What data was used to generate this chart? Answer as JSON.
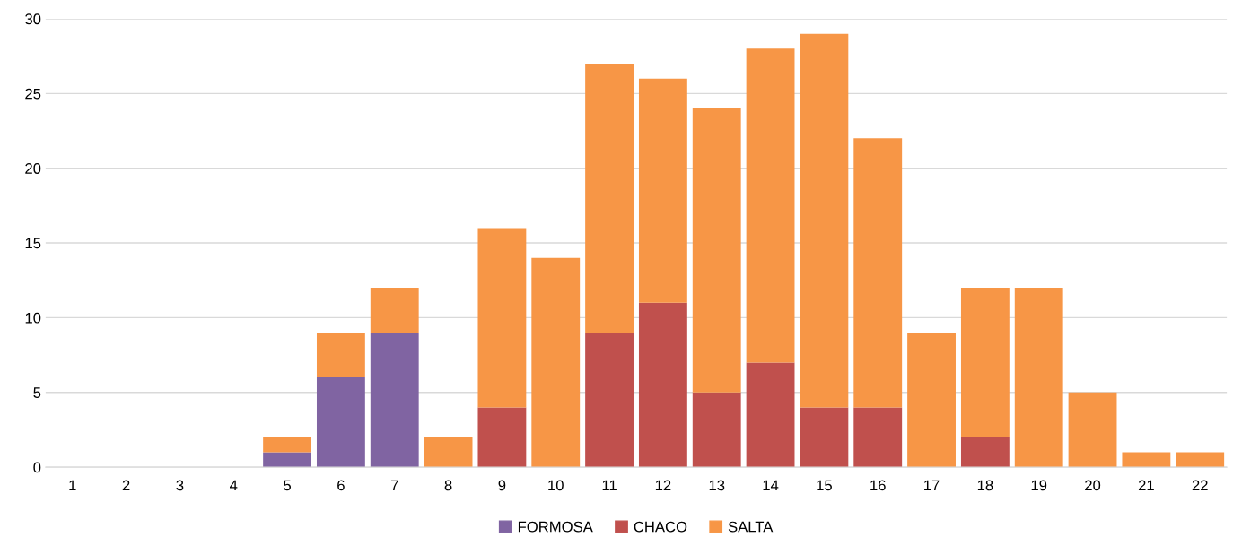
{
  "chart_data": {
    "type": "bar",
    "stacked": true,
    "categories": [
      "1",
      "2",
      "3",
      "4",
      "5",
      "6",
      "7",
      "8",
      "9",
      "10",
      "11",
      "12",
      "13",
      "14",
      "15",
      "16",
      "17",
      "18",
      "19",
      "20",
      "21",
      "22"
    ],
    "series": [
      {
        "name": "FORMOSA",
        "color": "#8064a2",
        "values": [
          0,
          0,
          0,
          0,
          1,
          6,
          9,
          0,
          0,
          0,
          0,
          0,
          0,
          0,
          0,
          0,
          0,
          0,
          0,
          0,
          0,
          0
        ]
      },
      {
        "name": "CHACO",
        "color": "#c0504d",
        "values": [
          0,
          0,
          0,
          0,
          0,
          0,
          0,
          0,
          4,
          0,
          9,
          11,
          5,
          7,
          4,
          4,
          0,
          2,
          0,
          0,
          0,
          0
        ]
      },
      {
        "name": "SALTA",
        "color": "#f79646",
        "values": [
          0,
          0,
          0,
          0,
          1,
          3,
          3,
          2,
          12,
          14,
          18,
          15,
          19,
          21,
          25,
          18,
          9,
          10,
          12,
          5,
          1,
          1
        ]
      }
    ],
    "ylim": [
      0,
      30
    ],
    "yticks": [
      0,
      5,
      10,
      15,
      20,
      25,
      30
    ],
    "grid": "y",
    "legend": "bottom"
  }
}
